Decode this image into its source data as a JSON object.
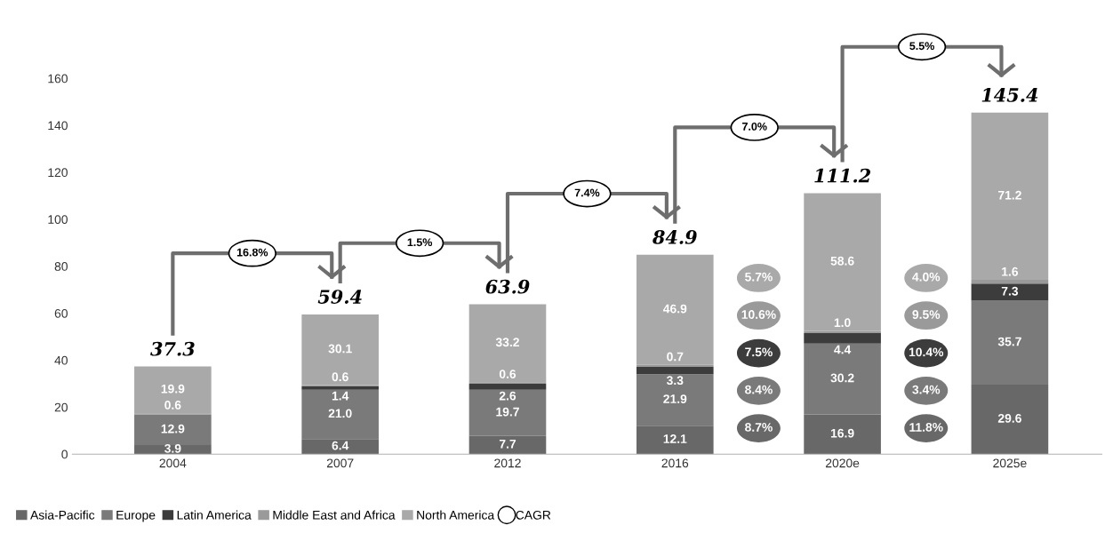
{
  "chart_data": {
    "type": "bar",
    "stacked": true,
    "categories": [
      "2004",
      "2007",
      "2012",
      "2016",
      "2020e",
      "2025e"
    ],
    "series": [
      {
        "name": "Asia-Pacific",
        "color": "#686868",
        "values": [
          3.9,
          6.4,
          7.7,
          12.1,
          16.9,
          29.6
        ],
        "value_labels": [
          "3.9",
          "6.4",
          "7.7",
          "12.1",
          "16.9",
          "29.6"
        ]
      },
      {
        "name": "Europe",
        "color": "#7a7a7a",
        "values": [
          12.9,
          21.0,
          19.7,
          21.9,
          30.2,
          35.7
        ],
        "value_labels": [
          "12.9",
          "21.0",
          "19.7",
          "21.9",
          "30.2",
          "35.7"
        ]
      },
      {
        "name": "Latin America",
        "color": "#3c3c3c",
        "values": [
          0,
          1.4,
          2.6,
          3.3,
          4.4,
          7.3
        ],
        "value_labels": [
          null,
          "1.4",
          "2.6",
          "3.3",
          "4.4",
          "7.3"
        ]
      },
      {
        "name": "Middle East and Africa",
        "color": "#9a9a9a",
        "values": [
          0.6,
          0.6,
          0.6,
          0.7,
          1.0,
          1.6
        ],
        "value_labels": [
          "0.6",
          "0.6",
          "0.6",
          "0.7",
          "1.0",
          "1.6"
        ]
      },
      {
        "name": "North America",
        "color": "#a9a9a9",
        "values": [
          19.9,
          30.1,
          33.2,
          46.9,
          58.6,
          71.2
        ],
        "value_labels": [
          "19.9",
          "30.1",
          "33.2",
          "46.9",
          "58.6",
          "71.2"
        ]
      }
    ],
    "totals": [
      "37.3",
      "59.4",
      "63.9",
      "84.9",
      "111.2",
      "145.4"
    ],
    "annotations": [
      "16.8%",
      "1.5%",
      "7.4%",
      "7.0%",
      "5.5%",
      "5.7%",
      "10.6%",
      "7.5%",
      "8.4%",
      "8.7%",
      "4.0%",
      "9.5%",
      "10.4%",
      "3.4%",
      "11.8%",
      "CAGR"
    ],
    "ylim": [
      0,
      160
    ],
    "yticks": [
      0,
      20,
      40,
      60,
      80,
      100,
      120,
      140,
      160
    ],
    "grid": false,
    "legend": "bottom left"
  }
}
